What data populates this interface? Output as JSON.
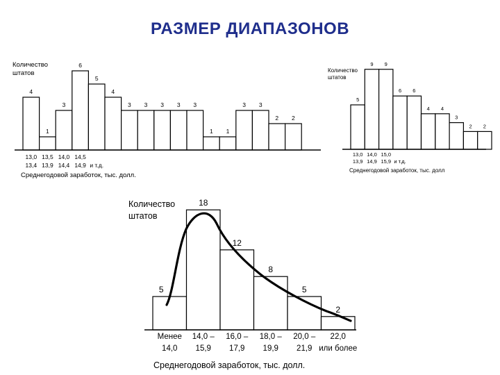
{
  "slide": {
    "title": "РАЗМЕР ДИАПАЗОНОВ"
  },
  "chart_data": [
    {
      "id": "narrow",
      "type": "bar",
      "ylabel": [
        "Количество",
        "штатов"
      ],
      "xlabel": "Среднегодовой заработок, тыс. долл.",
      "values": [
        4,
        1,
        3,
        6,
        5,
        4,
        3,
        3,
        3,
        3,
        3,
        1,
        1,
        3,
        3,
        2,
        2
      ],
      "tick_labels": [
        [
          "13,0",
          "13,4"
        ],
        [
          "13,5",
          "13,9"
        ],
        [
          "14,0",
          "14,4"
        ],
        [
          "14,5",
          "14,9"
        ],
        [
          "",
          "и т.д."
        ]
      ],
      "ylim": [
        0,
        6
      ]
    },
    {
      "id": "medium",
      "type": "bar",
      "ylabel": [
        "Количество",
        "штатов"
      ],
      "xlabel": "Среднегодовой заработок, тыс. долл",
      "values": [
        5,
        9,
        9,
        6,
        6,
        4,
        4,
        3,
        2,
        2
      ],
      "tick_labels": [
        [
          "13,0",
          "13,9"
        ],
        [
          "14,0",
          "14,9"
        ],
        [
          "15,0",
          "15,9"
        ],
        [
          "",
          "и т.д."
        ]
      ],
      "ylim": [
        0,
        9
      ]
    },
    {
      "id": "wide",
      "type": "bar",
      "ylabel": [
        "Количество",
        "штатов"
      ],
      "xlabel": "Среднегодовой заработок, тыс. долл.",
      "values": [
        5,
        18,
        12,
        8,
        5,
        2
      ],
      "tick_labels": [
        [
          "Менее",
          "14,0"
        ],
        [
          "14,0 –",
          "15,9"
        ],
        [
          "16,0 –",
          "17,9"
        ],
        [
          "18,0 –",
          "19,9"
        ],
        [
          "20,0 –",
          "21,9"
        ],
        [
          "22,0",
          "или более"
        ]
      ],
      "ylim": [
        0,
        18
      ],
      "trend_curve": true
    }
  ]
}
